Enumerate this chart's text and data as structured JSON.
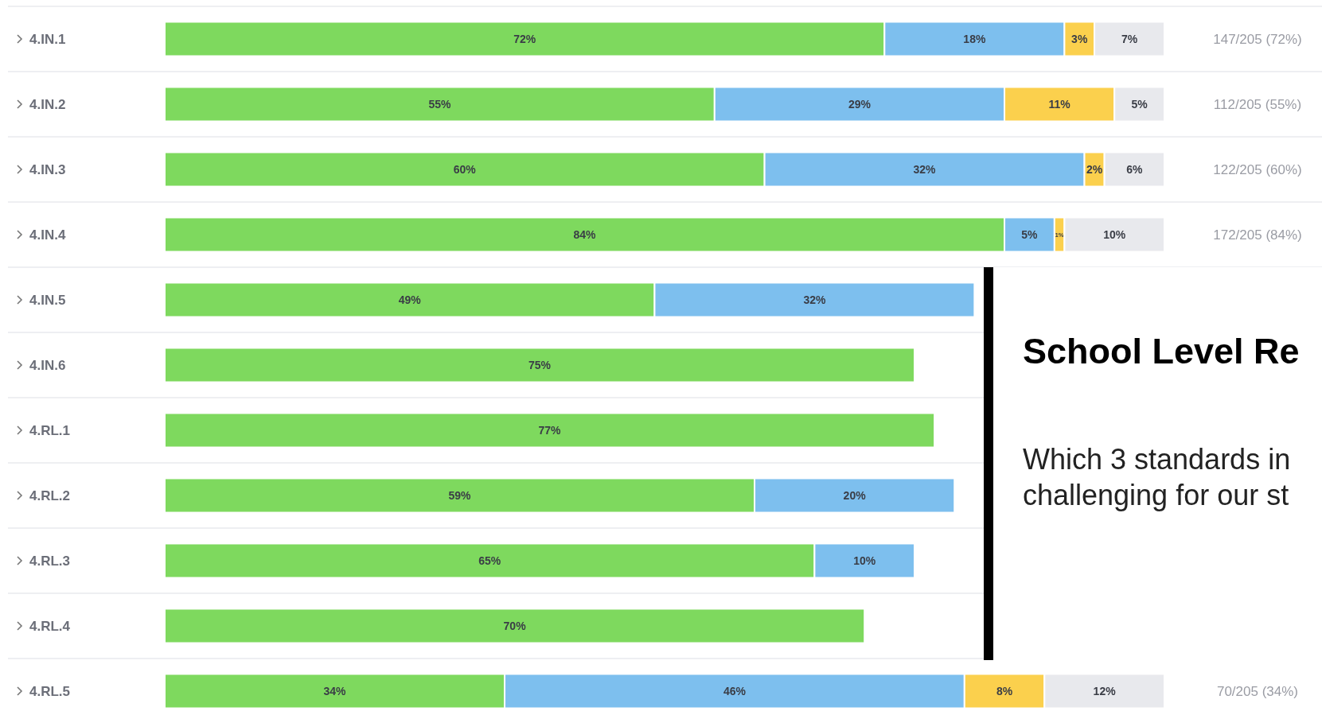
{
  "chart_data": {
    "type": "bar",
    "orientation": "horizontal",
    "stacked": true,
    "categories": [
      "4.IN.1",
      "4.IN.2",
      "4.IN.3",
      "4.IN.4",
      "4.IN.5",
      "4.IN.6",
      "4.RL.1",
      "4.RL.2",
      "4.RL.3",
      "4.RL.4",
      "4.RL.5"
    ],
    "xlim": [
      0,
      100
    ],
    "tick_labels": "y",
    "series": [
      {
        "color": "#7ed95e",
        "values": [
          72,
          55,
          60,
          84,
          49,
          75,
          77,
          59,
          65,
          70,
          34
        ],
        "value_labels": [
          "72%",
          "55%",
          "60%",
          "84%",
          "49%",
          "75%",
          "77%",
          "59%",
          "65%",
          "70%",
          "34%"
        ]
      },
      {
        "color": "#7dbfee",
        "values": [
          18,
          29,
          32,
          5,
          32,
          null,
          null,
          20,
          10,
          null,
          46
        ],
        "value_labels": [
          "18%",
          "29%",
          "32%",
          "5%",
          "32%",
          null,
          null,
          "20%",
          "10%",
          null,
          "46%"
        ]
      },
      {
        "color": "#fbd04d",
        "values": [
          3,
          11,
          2,
          1,
          null,
          null,
          null,
          null,
          null,
          null,
          8
        ],
        "value_labels": [
          "3%",
          "11%",
          "2%",
          "1%",
          null,
          null,
          null,
          null,
          null,
          null,
          "8%"
        ]
      },
      {
        "color": "#e8e9ed",
        "values": [
          7,
          5,
          6,
          10,
          null,
          null,
          null,
          null,
          null,
          null,
          12
        ],
        "value_labels": [
          "7%",
          "5%",
          "6%",
          "10%",
          null,
          null,
          null,
          null,
          null,
          null,
          "12%"
        ]
      }
    ],
    "annotations": [
      "School Level Re",
      "Which 3 standards in",
      "challenging for our st",
      "147/205 (72%)",
      "112/205 (55%)",
      "122/205 (60%)",
      "172/205 (84%)",
      "70/205 (34%)"
    ]
  }
}
